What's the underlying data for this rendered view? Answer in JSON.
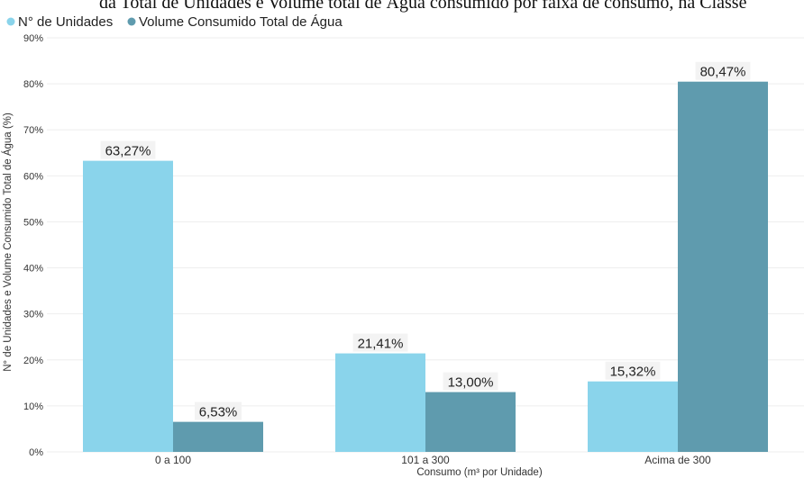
{
  "chart_data": {
    "type": "bar",
    "title": "da Total de Unidades e Volume total de Água consumido por faixa de consumo, na Classe",
    "categories": [
      "0 a 100",
      "101 a 300",
      "Acima de 300"
    ],
    "series": [
      {
        "name": "N° de Unidades",
        "values": [
          63.27,
          21.41,
          15.32
        ],
        "labels": [
          "63,27%",
          "21,41%",
          "15,32%"
        ],
        "color": "#8AD4EB"
      },
      {
        "name": "Volume Consumido Total de Água",
        "values": [
          6.53,
          13.0,
          80.47
        ],
        "labels": [
          "6,53%",
          "13,00%",
          "80,47%"
        ],
        "color": "#5F9BAE"
      }
    ],
    "xlabel": "Consumo (m³ por Unidade)",
    "ylabel": "N° de Unidades e Volume Consumido Total de Água (%)",
    "ylim": [
      0,
      90
    ],
    "yticks": [
      "0%",
      "10%",
      "20%",
      "30%",
      "40%",
      "50%",
      "60%",
      "70%",
      "80%",
      "90%"
    ],
    "grid": true,
    "legend": "top-left"
  }
}
